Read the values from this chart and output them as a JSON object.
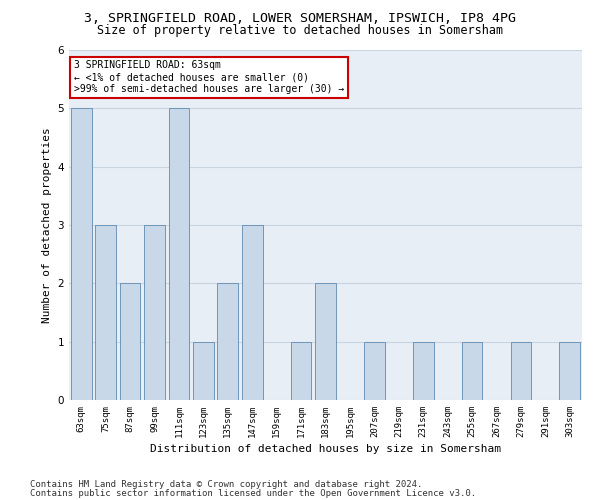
{
  "title_line1": "3, SPRINGFIELD ROAD, LOWER SOMERSHAM, IPSWICH, IP8 4PG",
  "title_line2": "Size of property relative to detached houses in Somersham",
  "xlabel": "Distribution of detached houses by size in Somersham",
  "ylabel": "Number of detached properties",
  "categories": [
    "63sqm",
    "75sqm",
    "87sqm",
    "99sqm",
    "111sqm",
    "123sqm",
    "135sqm",
    "147sqm",
    "159sqm",
    "171sqm",
    "183sqm",
    "195sqm",
    "207sqm",
    "219sqm",
    "231sqm",
    "243sqm",
    "255sqm",
    "267sqm",
    "279sqm",
    "291sqm",
    "303sqm"
  ],
  "values": [
    5,
    3,
    2,
    3,
    5,
    1,
    2,
    3,
    0,
    1,
    2,
    0,
    1,
    0,
    1,
    0,
    1,
    0,
    1,
    0,
    1
  ],
  "bar_color": "#c8d8e8",
  "bar_edge_color": "#5f8ab0",
  "annotation_box_text": "3 SPRINGFIELD ROAD: 63sqm\n← <1% of detached houses are smaller (0)\n>99% of semi-detached houses are larger (30) →",
  "annotation_box_color": "#ffffff",
  "annotation_box_edge_color": "#cc0000",
  "ylim": [
    0,
    6
  ],
  "yticks": [
    0,
    1,
    2,
    3,
    4,
    5,
    6
  ],
  "footer_line1": "Contains HM Land Registry data © Crown copyright and database right 2024.",
  "footer_line2": "Contains public sector information licensed under the Open Government Licence v3.0.",
  "title_fontsize": 9.5,
  "subtitle_fontsize": 8.5,
  "footer_fontsize": 6.5,
  "xlabel_fontsize": 8,
  "ylabel_fontsize": 8,
  "grid_color": "#c8d4e0",
  "background_color": "#e8eef5"
}
